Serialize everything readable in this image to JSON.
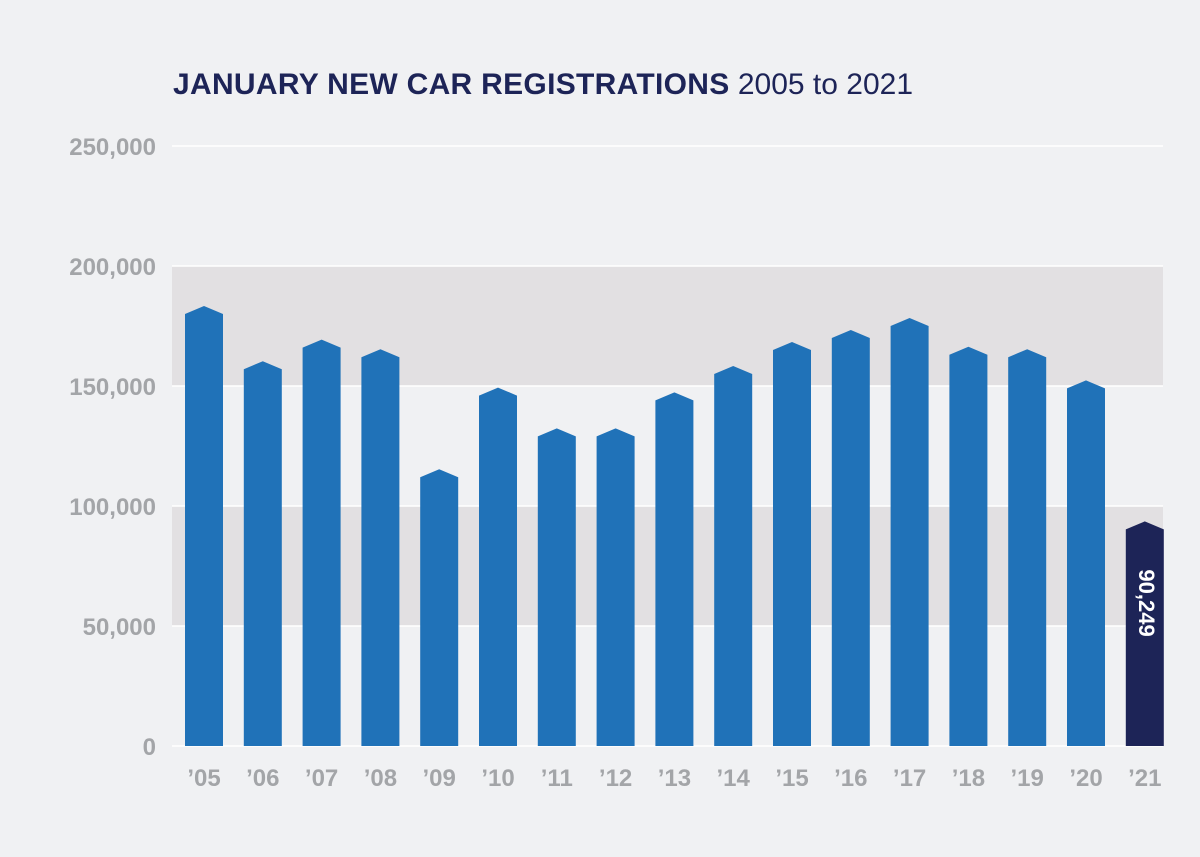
{
  "title": {
    "bold": "JANUARY NEW CAR REGISTRATIONS",
    "light": "2005 to 2021"
  },
  "colors": {
    "background": "#f0f1f3",
    "band": "#e2e0e2",
    "bar": "#2072b8",
    "highlight": "#1d2457",
    "title": "#1d2457",
    "tick": "#a3a5a8"
  },
  "chart_data": {
    "type": "bar",
    "title": "JANUARY NEW CAR REGISTRATIONS 2005 to 2021",
    "xlabel": "",
    "ylabel": "",
    "categories": [
      "’05",
      "’06",
      "’07",
      "’08",
      "’09",
      "’10",
      "’11",
      "’12",
      "’13",
      "’14",
      "’15",
      "’16",
      "’17",
      "’18",
      "’19",
      "’20",
      "’21"
    ],
    "values": [
      180000,
      157000,
      166000,
      162000,
      112000,
      146000,
      129000,
      129000,
      144000,
      155000,
      165000,
      170000,
      175000,
      163000,
      162000,
      149000,
      90249
    ],
    "highlight_index": 16,
    "data_labels": [
      {
        "index": 16,
        "text": "90,249"
      }
    ],
    "ylim": [
      0,
      250000
    ],
    "yticks": [
      0,
      50000,
      100000,
      150000,
      200000,
      250000
    ],
    "ytick_labels": [
      "0",
      "50,000",
      "100,000",
      "150,000",
      "200,000",
      "250,000"
    ],
    "shaded_bands": [
      [
        50000,
        100000
      ],
      [
        150000,
        200000
      ]
    ],
    "grid": true,
    "legend": "none"
  }
}
